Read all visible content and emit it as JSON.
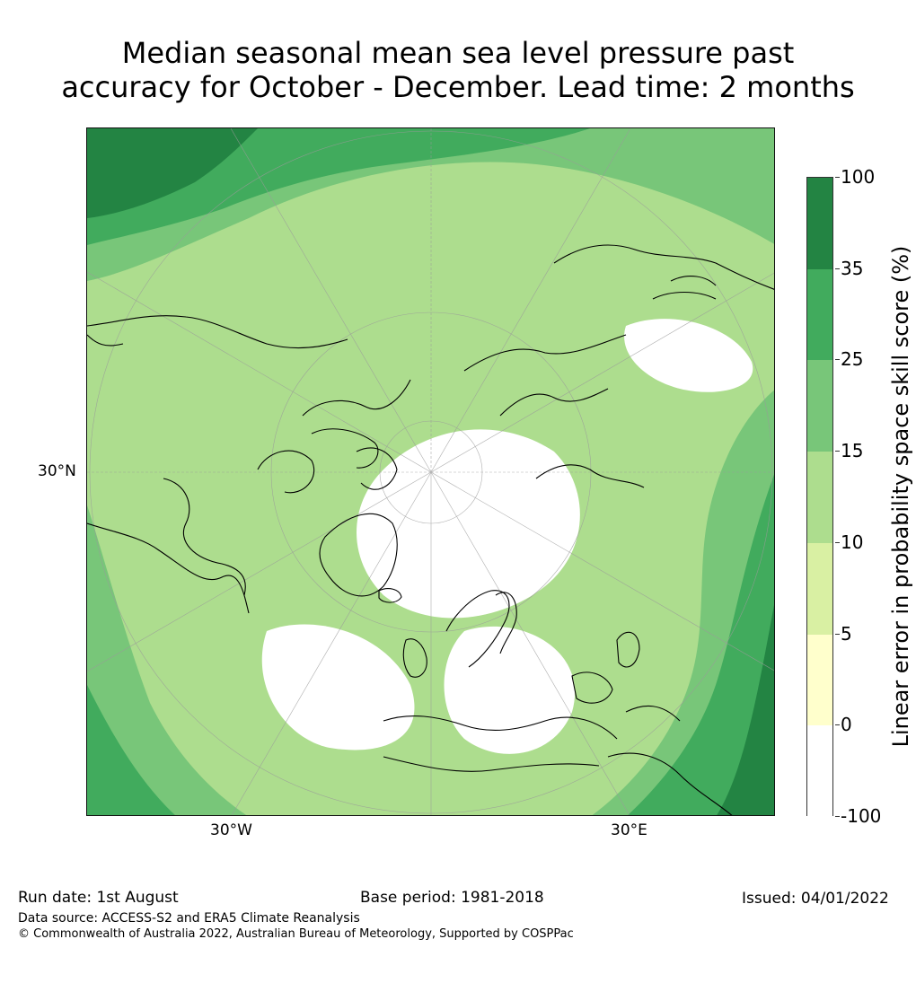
{
  "title": {
    "line1": "Median seasonal mean sea level pressure past",
    "line2": "accuracy for October - December. Lead time: 2 months"
  },
  "map": {
    "projection": "north-polar-stereographic",
    "lat_label": "30°N",
    "lon_labels": {
      "west": "30°W",
      "east": "30°E"
    },
    "background_color": "#ffffff"
  },
  "colorbar": {
    "title": "Linear error in probability space skill score (%)",
    "ticks": [
      "100",
      "35",
      "25",
      "15",
      "10",
      "5",
      "0",
      "-100"
    ],
    "bins": [
      {
        "range": "35 to 100",
        "color": "#238443"
      },
      {
        "range": "25 to 35",
        "color": "#41ab5d"
      },
      {
        "range": "15 to 25",
        "color": "#78c679"
      },
      {
        "range": "10 to 15",
        "color": "#addd8e"
      },
      {
        "range": "5 to 10",
        "color": "#d9f0a3"
      },
      {
        "range": "0 to 5",
        "color": "#ffffcc"
      },
      {
        "range": "-100 to 0",
        "color": "#ffffff"
      }
    ]
  },
  "footer": {
    "run_date": "Run date: 1st August",
    "base_period": "Base period: 1981-2018",
    "issued": "Issued: 04/01/2022",
    "data_source": "Data source: ACCESS-S2 and ERA5 Climate Reanalysis",
    "copyright": "© Commonwealth of Australia 2022, Australian Bureau of Meteorology, Supported by COSPPac"
  }
}
